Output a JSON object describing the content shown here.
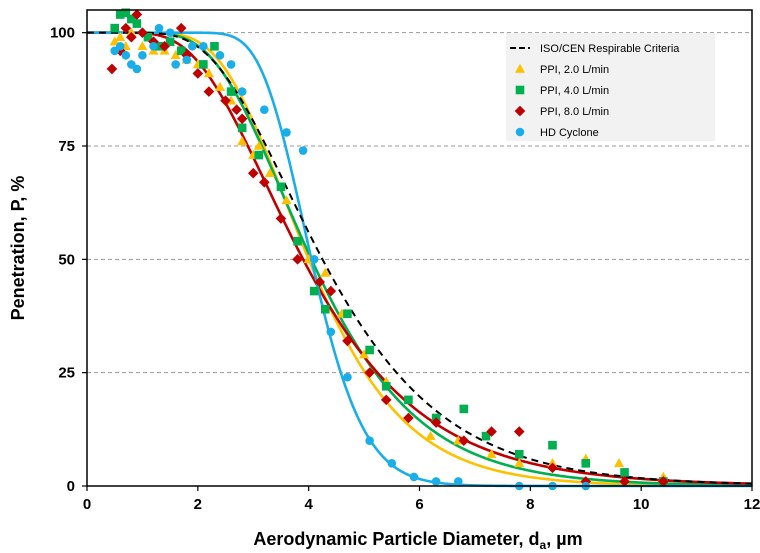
{
  "chart_data": {
    "type": "scatter",
    "xlabel_main": "Aerodynamic Particle Diameter, d",
    "xlabel_sub": "a",
    "xlabel_unit": ", µm",
    "ylabel": "Penetration, P, %",
    "xlim": [
      0,
      12
    ],
    "ylim": [
      0,
      105
    ],
    "x_ticks": [
      0,
      2,
      4,
      6,
      8,
      10,
      12
    ],
    "y_ticks": [
      0,
      25,
      50,
      75,
      100
    ],
    "x_tick_labels": [
      "0",
      "2",
      "4",
      "6",
      "8",
      "10",
      "12"
    ],
    "y_tick_labels": [
      "0",
      "25",
      "50",
      "75",
      "100"
    ],
    "grid": "horizontal dashed",
    "legend_position": "top-right",
    "legend": [
      {
        "label": "ISO/CEN Respirable Criteria",
        "marker": "dashed-line",
        "color": "#000000"
      },
      {
        "label": "PPI, 2.0 L/min",
        "marker": "triangle",
        "color": "#FFC000"
      },
      {
        "label": "PPI, 4.0 L/min",
        "marker": "square",
        "color": "#00B050"
      },
      {
        "label": "PPI, 8.0 L/min",
        "marker": "diamond",
        "color": "#C00000"
      },
      {
        "label": "HD Cyclone",
        "marker": "circle",
        "color": "#1AAEE8"
      }
    ],
    "curves": [
      {
        "series": "ISO/CEN Respirable Criteria",
        "type": "lognormal",
        "d50": 4.25,
        "gsd": 1.5,
        "dashed": true,
        "color": "#000000"
      },
      {
        "series": "PPI, 2.0 L/min",
        "type": "lognormal",
        "d50": 4.0,
        "gsd": 1.4,
        "dashed": false,
        "color": "#FFC000"
      },
      {
        "series": "PPI, 4.0 L/min",
        "type": "lognormal",
        "d50": 4.05,
        "gsd": 1.45,
        "dashed": false,
        "color": "#00B050"
      },
      {
        "series": "PPI, 8.0 L/min",
        "type": "lognormal",
        "d50": 3.9,
        "gsd": 1.55,
        "dashed": false,
        "color": "#C00000"
      },
      {
        "series": "HD Cyclone",
        "type": "lognormal",
        "d50": 4.05,
        "gsd": 1.2,
        "dashed": false,
        "color": "#1AAEE8"
      }
    ],
    "series": [
      {
        "name": "PPI, 2.0 L/min",
        "marker": "triangle",
        "color": "#FFC000",
        "points": [
          [
            0.5,
            98
          ],
          [
            0.6,
            99
          ],
          [
            0.7,
            97
          ],
          [
            0.8,
            100
          ],
          [
            1.0,
            97
          ],
          [
            1.2,
            96
          ],
          [
            1.4,
            96
          ],
          [
            1.6,
            95
          ],
          [
            1.8,
            94
          ],
          [
            2.0,
            93
          ],
          [
            2.2,
            91
          ],
          [
            2.4,
            88
          ],
          [
            2.6,
            85
          ],
          [
            2.8,
            76
          ],
          [
            3.0,
            73
          ],
          [
            3.1,
            75
          ],
          [
            3.3,
            69
          ],
          [
            3.6,
            63
          ],
          [
            4.0,
            50
          ],
          [
            4.3,
            47
          ],
          [
            4.6,
            38
          ],
          [
            5.0,
            29
          ],
          [
            5.4,
            23
          ],
          [
            6.2,
            11
          ],
          [
            6.7,
            10
          ],
          [
            7.3,
            7
          ],
          [
            7.8,
            5
          ],
          [
            8.4,
            5
          ],
          [
            9.0,
            6
          ],
          [
            9.6,
            5
          ],
          [
            10.4,
            2
          ]
        ]
      },
      {
        "name": "PPI, 4.0 L/min",
        "marker": "square",
        "color": "#00B050",
        "points": [
          [
            0.5,
            101
          ],
          [
            0.6,
            104
          ],
          [
            0.7,
            105
          ],
          [
            0.8,
            103
          ],
          [
            0.9,
            102
          ],
          [
            1.1,
            99
          ],
          [
            1.3,
            97
          ],
          [
            1.5,
            98
          ],
          [
            1.7,
            96
          ],
          [
            2.1,
            93
          ],
          [
            2.3,
            97
          ],
          [
            2.6,
            87
          ],
          [
            2.8,
            79
          ],
          [
            3.1,
            73
          ],
          [
            3.5,
            66
          ],
          [
            3.8,
            54
          ],
          [
            4.1,
            43
          ],
          [
            4.3,
            39
          ],
          [
            4.7,
            38
          ],
          [
            5.1,
            30
          ],
          [
            5.4,
            22
          ],
          [
            5.8,
            19
          ],
          [
            6.3,
            15
          ],
          [
            6.8,
            17
          ],
          [
            7.2,
            11
          ],
          [
            7.8,
            7
          ],
          [
            8.4,
            9
          ],
          [
            9.0,
            5
          ],
          [
            9.7,
            3
          ],
          [
            10.4,
            1
          ]
        ]
      },
      {
        "name": "PPI, 8.0 L/min",
        "marker": "diamond",
        "color": "#C00000",
        "points": [
          [
            0.45,
            92
          ],
          [
            0.6,
            96
          ],
          [
            0.7,
            101
          ],
          [
            0.8,
            99
          ],
          [
            0.9,
            104
          ],
          [
            1.0,
            100
          ],
          [
            1.2,
            98
          ],
          [
            1.4,
            97
          ],
          [
            1.7,
            101
          ],
          [
            1.8,
            95
          ],
          [
            2.0,
            91
          ],
          [
            2.2,
            87
          ],
          [
            2.5,
            85
          ],
          [
            2.7,
            83
          ],
          [
            2.8,
            81
          ],
          [
            3.0,
            69
          ],
          [
            3.2,
            67
          ],
          [
            3.5,
            59
          ],
          [
            3.8,
            50
          ],
          [
            4.2,
            45
          ],
          [
            4.4,
            43
          ],
          [
            4.7,
            32
          ],
          [
            5.1,
            25
          ],
          [
            5.4,
            19
          ],
          [
            5.8,
            15
          ],
          [
            6.3,
            14
          ],
          [
            6.8,
            10
          ],
          [
            7.3,
            12
          ],
          [
            7.8,
            12
          ],
          [
            8.4,
            4
          ],
          [
            9.0,
            1
          ],
          [
            9.7,
            1
          ],
          [
            10.4,
            1
          ]
        ]
      },
      {
        "name": "HD Cyclone",
        "marker": "circle",
        "color": "#1AAEE8",
        "points": [
          [
            0.5,
            96
          ],
          [
            0.6,
            97
          ],
          [
            0.7,
            95
          ],
          [
            0.8,
            93
          ],
          [
            0.9,
            92
          ],
          [
            1.0,
            95
          ],
          [
            1.2,
            97
          ],
          [
            1.3,
            101
          ],
          [
            1.5,
            100
          ],
          [
            1.6,
            93
          ],
          [
            1.8,
            94
          ],
          [
            1.9,
            97
          ],
          [
            2.1,
            97
          ],
          [
            2.4,
            95
          ],
          [
            2.6,
            93
          ],
          [
            2.8,
            87
          ],
          [
            3.2,
            83
          ],
          [
            3.6,
            78
          ],
          [
            3.9,
            74
          ],
          [
            4.1,
            50
          ],
          [
            4.4,
            34
          ],
          [
            4.7,
            24
          ],
          [
            5.1,
            10
          ],
          [
            5.5,
            5
          ],
          [
            5.9,
            2
          ],
          [
            6.3,
            1
          ],
          [
            6.7,
            1
          ],
          [
            7.8,
            0
          ],
          [
            8.4,
            0
          ],
          [
            9.0,
            0
          ]
        ]
      }
    ]
  }
}
